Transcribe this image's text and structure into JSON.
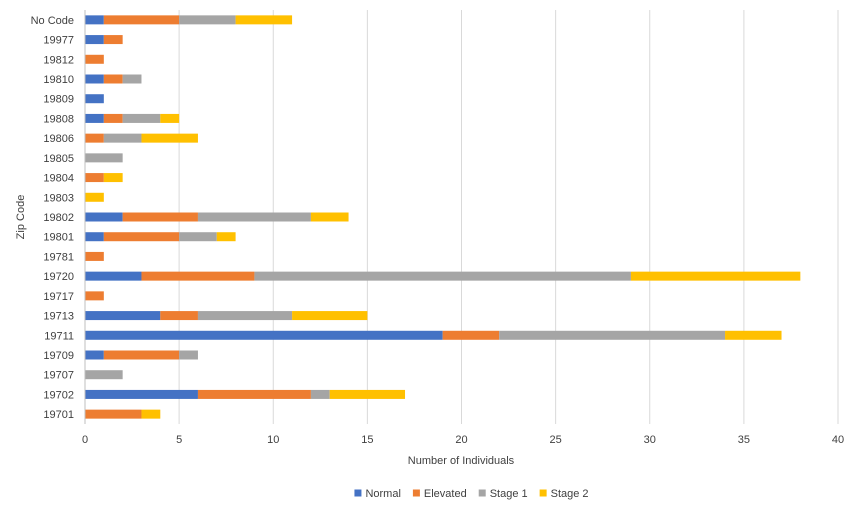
{
  "chart_data": {
    "type": "bar",
    "orientation": "horizontal",
    "stacked": true,
    "title": "",
    "xlabel": "Number of Individuals",
    "ylabel": "Zip Code",
    "xlim": [
      0,
      40
    ],
    "xticks": [
      0,
      5,
      10,
      15,
      20,
      25,
      30,
      35,
      40
    ],
    "grid": true,
    "legend_position": "bottom",
    "categories": [
      "No Code",
      "19977",
      "19812",
      "19810",
      "19809",
      "19808",
      "19806",
      "19805",
      "19804",
      "19803",
      "19802",
      "19801",
      "19781",
      "19720",
      "19717",
      "19713",
      "19711",
      "19709",
      "19707",
      "19702",
      "19701"
    ],
    "series": [
      {
        "name": "Normal",
        "color": "#4472C4",
        "values": [
          1,
          1,
          0,
          1,
          1,
          1,
          0,
          0,
          0,
          0,
          2,
          1,
          0,
          3,
          0,
          4,
          19,
          1,
          0,
          6,
          0
        ]
      },
      {
        "name": "Elevated",
        "color": "#ED7D31",
        "values": [
          4,
          1,
          1,
          1,
          0,
          1,
          1,
          0,
          1,
          0,
          4,
          4,
          1,
          6,
          1,
          2,
          3,
          4,
          0,
          6,
          3
        ]
      },
      {
        "name": "Stage 1",
        "color": "#A5A5A5",
        "values": [
          3,
          0,
          0,
          1,
          0,
          2,
          2,
          2,
          0,
          0,
          6,
          2,
          0,
          20,
          0,
          5,
          12,
          1,
          2,
          1,
          0
        ]
      },
      {
        "name": "Stage 2",
        "color": "#FFC000",
        "values": [
          3,
          0,
          0,
          0,
          0,
          1,
          3,
          0,
          1,
          1,
          2,
          1,
          0,
          9,
          0,
          4,
          3,
          0,
          0,
          4,
          1
        ]
      }
    ]
  }
}
